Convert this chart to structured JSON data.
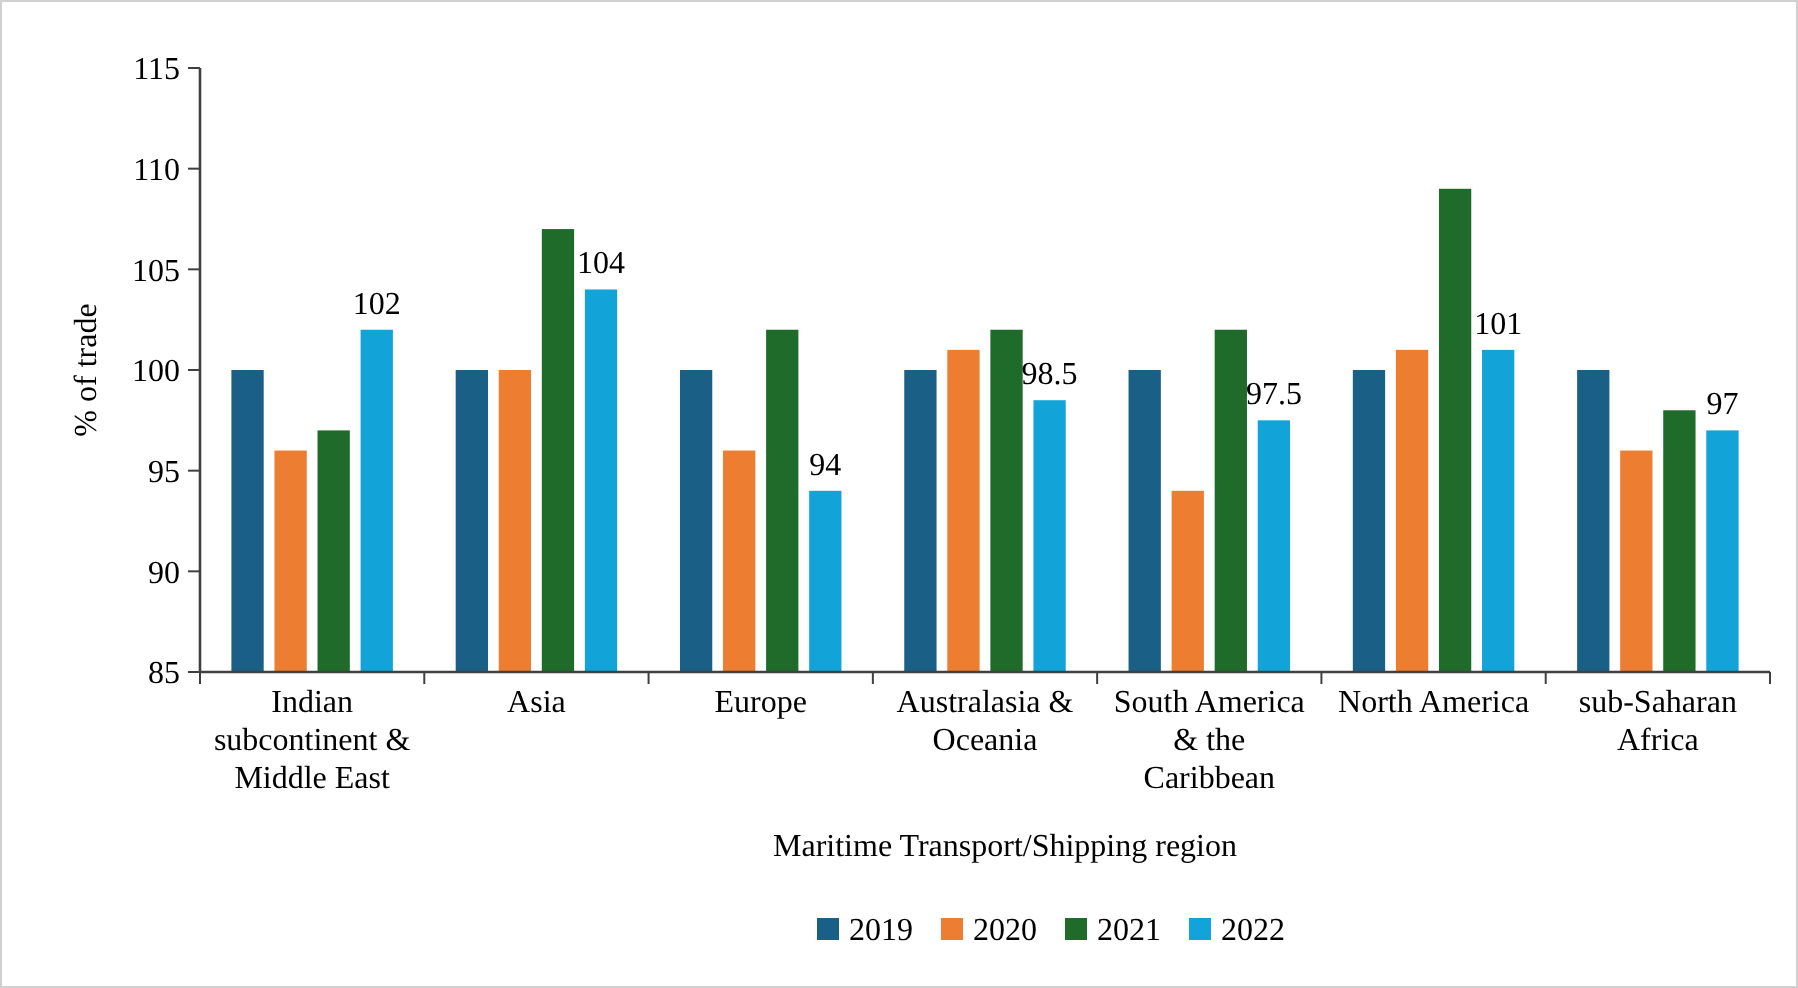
{
  "chart_data": {
    "type": "bar",
    "ylabel": "% of trade",
    "xlabel": "Maritime Transport/Shipping region",
    "categories": [
      "Indian subcontinent & Middle East",
      "Asia",
      "Europe",
      "Australasia & Oceania",
      "South America & the Caribbean",
      "North America",
      "sub-Saharan Africa"
    ],
    "series": [
      {
        "name": "2019",
        "color": "#1a5f86",
        "values": [
          100,
          100,
          100,
          100,
          100,
          100,
          100
        ]
      },
      {
        "name": "2020",
        "color": "#ed7d31",
        "values": [
          96,
          100,
          96,
          101,
          94,
          101,
          96
        ]
      },
      {
        "name": "2021",
        "color": "#1e6b2a",
        "values": [
          97,
          107,
          102,
          102,
          102,
          109,
          98
        ]
      },
      {
        "name": "2022",
        "color": "#12a3d8",
        "values": [
          102,
          104,
          94,
          98.5,
          97.5,
          101,
          97
        ],
        "value_labels": [
          "102",
          "104",
          "94",
          "98.5",
          "97.5",
          "101",
          "97"
        ]
      }
    ],
    "ylim": [
      85,
      115
    ],
    "yticks": [
      85,
      90,
      95,
      100,
      105,
      110,
      115
    ],
    "grid": false,
    "legend": "bottom"
  }
}
